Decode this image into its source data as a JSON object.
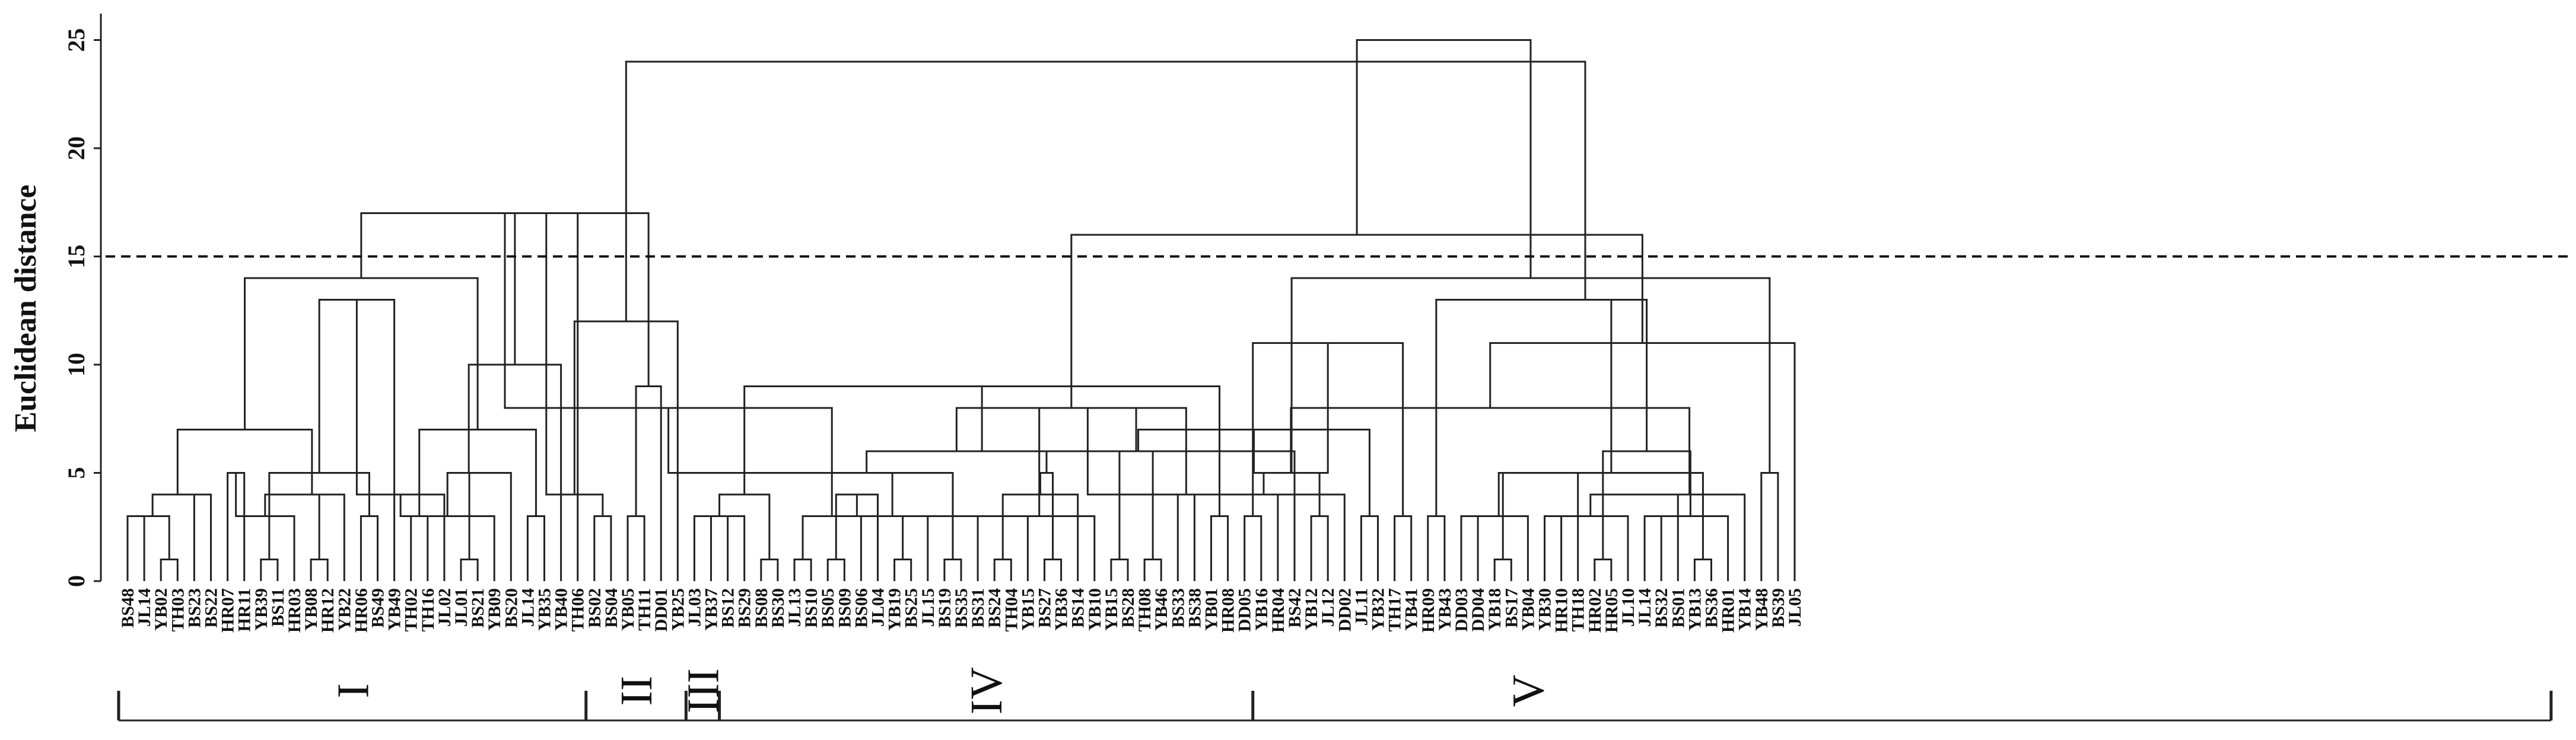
{
  "chart_data": {
    "type": "dendrogram",
    "ylabel": "Euclidean distance",
    "ylim": [
      0,
      26
    ],
    "yticks": [
      0,
      5,
      10,
      15,
      20,
      25
    ],
    "cutoff": 15,
    "colors": {
      "lines": "#222222",
      "cutoff": "#111111",
      "text": "#111111"
    },
    "leaves": [
      "BS48",
      "JL14",
      "YB02",
      "TH03",
      "BS23",
      "BS22",
      "HR07",
      "HR11",
      "YB39",
      "BS11",
      "HR03",
      "YB08",
      "HR12",
      "YB22",
      "HR06",
      "BS49",
      "YB49",
      "TH02",
      "TH16",
      "JL02",
      "JL01",
      "BS21",
      "YB09",
      "BS20",
      "JL14",
      "YB35",
      "YB40",
      "TH06",
      "BS02",
      "BS04",
      "YB05",
      "TH11",
      "DD01",
      "YB25",
      "JL03",
      "YB37",
      "BS12",
      "BS29",
      "BS08",
      "BS30",
      "JL13",
      "BS10",
      "BS05",
      "BS09",
      "BS06",
      "JL04",
      "YB19",
      "BS25",
      "JL15",
      "BS19",
      "BS35",
      "BS31",
      "BS24",
      "TH04",
      "YB15",
      "BS27",
      "YB36",
      "BS14",
      "YB10",
      "YB15",
      "BS28",
      "TH08",
      "YB46",
      "BS33",
      "BS38",
      "YB01",
      "HR08",
      "DD05",
      "YB16",
      "HR04",
      "BS42",
      "YB12",
      "JL12",
      "DD02",
      "JL11",
      "YB32",
      "TH17",
      "YB41",
      "HR09",
      "YB43",
      "DD03",
      "DD04",
      "YB18",
      "BS17",
      "YB04",
      "YB30",
      "HR10",
      "TH18",
      "HR02",
      "HR05",
      "JL10",
      "JL14",
      "BS32",
      "BS01",
      "YB13",
      "BS36",
      "HR01",
      "YB14",
      "YB48",
      "BS39",
      "JL05"
    ],
    "groups": [
      {
        "label": "I",
        "from": 0,
        "to": 27
      },
      {
        "label": "II",
        "from": 28,
        "to": 33
      },
      {
        "label": "III",
        "from": 34,
        "to": 35
      },
      {
        "label": "IV",
        "from": 36,
        "to": 67
      },
      {
        "label": "V",
        "from": 68,
        "to": 100
      }
    ],
    "merges": [
      {
        "a": "L0",
        "b": "L1",
        "h": 3
      },
      {
        "a": "L2",
        "b": "L3",
        "h": 1
      },
      {
        "a": "N0",
        "b": "N1",
        "h": 3
      },
      {
        "a": "L4",
        "b": "L5",
        "h": 4
      },
      {
        "a": "N2",
        "b": "N3",
        "h": 4
      },
      {
        "a": "L6",
        "b": "L7",
        "h": 5
      },
      {
        "a": "L8",
        "b": "L9",
        "h": 1
      },
      {
        "a": "N5",
        "b": "L10",
        "h": 3
      },
      {
        "a": "L11",
        "b": "L12",
        "h": 1
      },
      {
        "a": "N7",
        "b": "L13",
        "h": 4
      },
      {
        "a": "L14",
        "b": "L15",
        "h": 3
      },
      {
        "a": "N9",
        "b": "N8",
        "h": 4
      },
      {
        "a": "N6",
        "b": "N10",
        "h": 5
      },
      {
        "a": "N4",
        "b": "N11",
        "h": 7
      },
      {
        "a": "N12",
        "b": "L16",
        "h": 13
      },
      {
        "a": "L17",
        "b": "L18",
        "h": 3
      },
      {
        "a": "N14",
        "b": "L19",
        "h": 4
      },
      {
        "a": "L20",
        "b": "L21",
        "h": 1
      },
      {
        "a": "N16",
        "b": "L22",
        "h": 3
      },
      {
        "a": "N17",
        "b": "L23",
        "h": 5
      },
      {
        "a": "L24",
        "b": "L25",
        "h": 3
      },
      {
        "a": "N18",
        "b": "N19",
        "h": 5
      },
      {
        "a": "N15",
        "b": "N20",
        "h": 7
      },
      {
        "a": "N21",
        "b": "L26",
        "h": 10
      },
      {
        "a": "N13",
        "b": "N22",
        "h": 14
      },
      {
        "a": "N23",
        "b": "L27",
        "h": 17
      },
      {
        "a": "L28",
        "b": "L29",
        "h": 3
      },
      {
        "a": "L30",
        "b": "L31",
        "h": 3
      },
      {
        "a": "N25",
        "b": "N26",
        "h": 4
      },
      {
        "a": "N27",
        "b": "L32",
        "h": 9
      },
      {
        "a": "N28",
        "b": "L33",
        "h": 12
      },
      {
        "a": "N24",
        "b": "N29",
        "h": 17
      },
      {
        "a": "L34",
        "b": "L35",
        "h": 3
      },
      {
        "a": "L36",
        "b": "L37",
        "h": 3
      },
      {
        "a": "L38",
        "b": "L39",
        "h": 1
      },
      {
        "a": "L40",
        "b": "L41",
        "h": 1
      },
      {
        "a": "N32",
        "b": "N33",
        "h": 3
      },
      {
        "a": "L42",
        "b": "L43",
        "h": 1
      },
      {
        "a": "N35",
        "b": "L44",
        "h": 3
      },
      {
        "a": "N34",
        "b": "N36",
        "h": 4
      },
      {
        "a": "N37",
        "b": "L45",
        "h": 4
      },
      {
        "a": "N31",
        "b": "N38",
        "h": 8
      },
      {
        "a": "L46",
        "b": "L47",
        "h": 1
      },
      {
        "a": "N40",
        "b": "L48",
        "h": 3
      },
      {
        "a": "L49",
        "b": "L50",
        "h": 1
      },
      {
        "a": "N42",
        "b": "L51",
        "h": 3
      },
      {
        "a": "N41",
        "b": "N43",
        "h": 5
      },
      {
        "a": "L52",
        "b": "L53",
        "h": 1
      },
      {
        "a": "N45",
        "b": "L54",
        "h": 3
      },
      {
        "a": "L55",
        "b": "L56",
        "h": 1
      },
      {
        "a": "N47",
        "b": "L57",
        "h": 4
      },
      {
        "a": "N48",
        "b": "L58",
        "h": 3
      },
      {
        "a": "N44",
        "b": "N46",
        "h": 5
      },
      {
        "a": "N50",
        "b": "N49",
        "h": 5
      },
      {
        "a": "L59",
        "b": "L60",
        "h": 1
      },
      {
        "a": "L61",
        "b": "L62",
        "h": 1
      },
      {
        "a": "N52",
        "b": "N53",
        "h": 6
      },
      {
        "a": "L63",
        "b": "L64",
        "h": 4
      },
      {
        "a": "N54",
        "b": "N55",
        "h": 6
      },
      {
        "a": "L65",
        "b": "L66",
        "h": 3
      },
      {
        "a": "N56",
        "b": "N57",
        "h": 8
      },
      {
        "a": "N51",
        "b": "N58",
        "h": 8
      },
      {
        "a": "N39",
        "b": "N59",
        "h": 9
      },
      {
        "a": "L67",
        "b": "L68",
        "h": 3
      },
      {
        "a": "N61",
        "b": "L69",
        "h": 4
      },
      {
        "a": "N62",
        "b": "L70",
        "h": 6
      },
      {
        "a": "L71",
        "b": "L72",
        "h": 3
      },
      {
        "a": "N64",
        "b": "L73",
        "h": 4
      },
      {
        "a": "L74",
        "b": "L75",
        "h": 3
      },
      {
        "a": "L76",
        "b": "L77",
        "h": 3
      },
      {
        "a": "N66",
        "b": "N67",
        "h": 5
      },
      {
        "a": "N65",
        "b": "N68",
        "h": 7
      },
      {
        "a": "N63",
        "b": "N69",
        "h": 11
      },
      {
        "a": "L78",
        "b": "L79",
        "h": 3
      },
      {
        "a": "L80",
        "b": "L81",
        "h": 3
      },
      {
        "a": "N71",
        "b": "N72",
        "h": 5
      },
      {
        "a": "L82",
        "b": "L83",
        "h": 1
      },
      {
        "a": "N74",
        "b": "L84",
        "h": 3
      },
      {
        "a": "L85",
        "b": "L86",
        "h": 3
      },
      {
        "a": "N76",
        "b": "L87",
        "h": 5
      },
      {
        "a": "L88",
        "b": "L89",
        "h": 1
      },
      {
        "a": "N78",
        "b": "L90",
        "h": 3
      },
      {
        "a": "N77",
        "b": "N79",
        "h": 5
      },
      {
        "a": "L91",
        "b": "L92",
        "h": 3
      },
      {
        "a": "N81",
        "b": "L93",
        "h": 4
      },
      {
        "a": "L94",
        "b": "L95",
        "h": 1
      },
      {
        "a": "N83",
        "b": "L96",
        "h": 3
      },
      {
        "a": "N84",
        "b": "L97",
        "h": 4
      },
      {
        "a": "N82",
        "b": "N85",
        "h": 5
      },
      {
        "a": "N80",
        "b": "N86",
        "h": 6
      },
      {
        "a": "N75",
        "b": "N87",
        "h": 8
      },
      {
        "a": "N73",
        "b": "N88",
        "h": 13
      },
      {
        "a": "L98",
        "b": "L99",
        "h": 5
      },
      {
        "a": "N90",
        "b": "L100",
        "h": 11
      },
      {
        "a": "N89",
        "b": "N91",
        "h": 13
      },
      {
        "a": "N70",
        "b": "N92",
        "h": 14
      },
      {
        "a": "N60",
        "b": "N93",
        "h": 16
      },
      {
        "a": "N94",
        "b": "N30",
        "h": 24
      },
      {
        "a": "N95",
        "b": "N96",
        "h": 25
      }
    ]
  }
}
